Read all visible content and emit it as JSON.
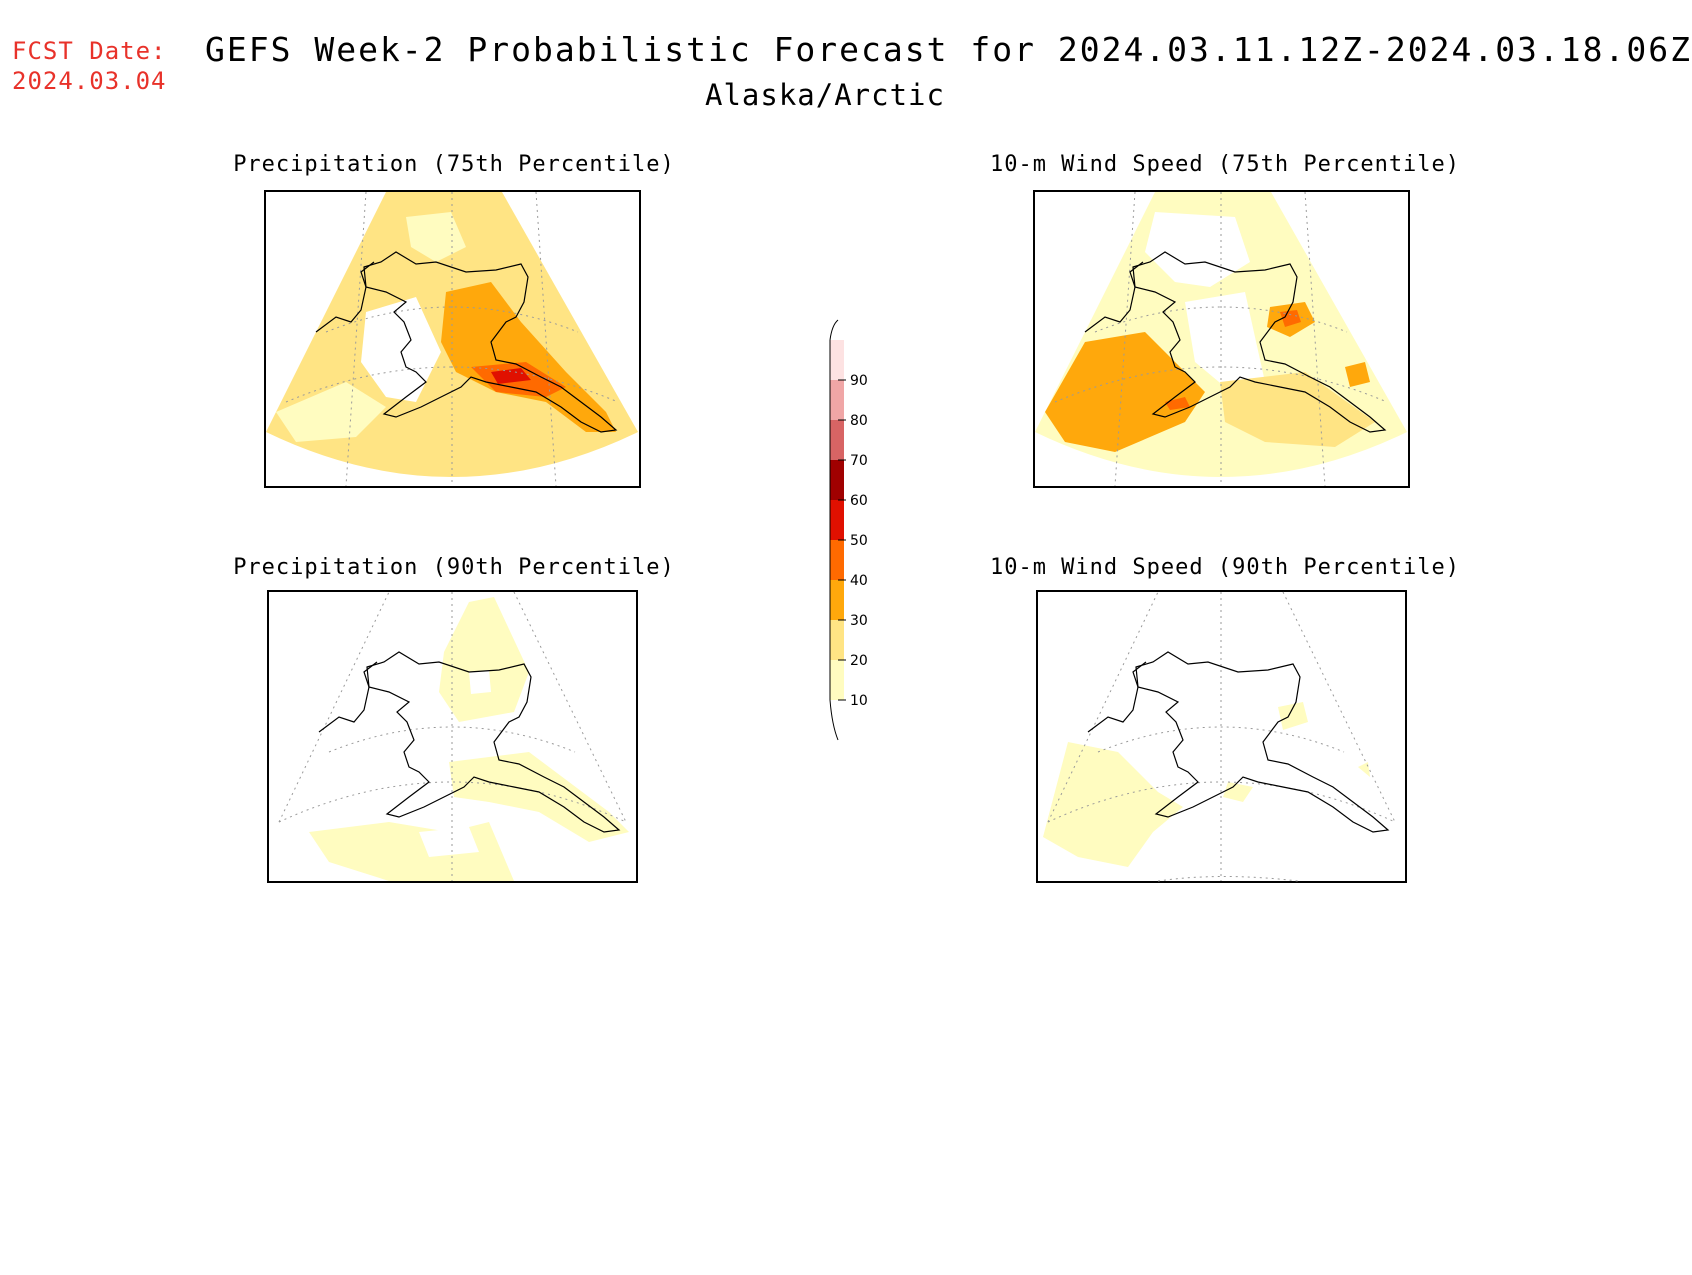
{
  "header": {
    "fcst_label": "FCST Date:",
    "fcst_date": "2024.03.04",
    "title": "GEFS Week-2 Probabilistic Forecast for 2024.03.11.12Z-2024.03.18.06Z",
    "region": "Alaska/Arctic"
  },
  "panels": [
    {
      "title": "Precipitation (75th Percentile)"
    },
    {
      "title": "10-m Wind Speed (75th Percentile)"
    },
    {
      "title": "Precipitation (90th Percentile)"
    },
    {
      "title": "10-m Wind Speed (90th Percentile)"
    }
  ],
  "colorbar": {
    "levels": [
      "10",
      "20",
      "30",
      "40",
      "50",
      "60",
      "70",
      "80",
      "90"
    ],
    "colors": [
      "#fffcc0",
      "#ffe484",
      "#ffa80c",
      "#ff6a00",
      "#e01000",
      "#a00000",
      "#d86464",
      "#f0a6a6",
      "#fde2e2"
    ]
  }
}
